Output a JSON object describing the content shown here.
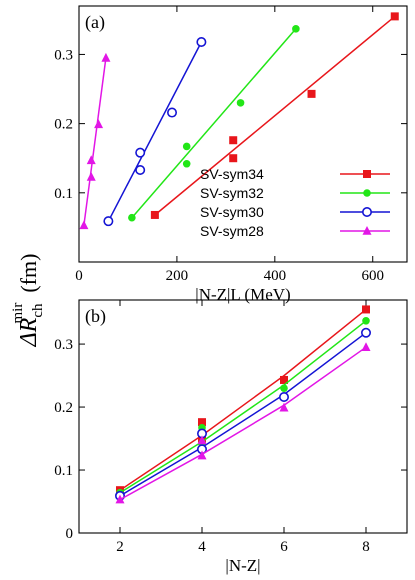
{
  "y_label_main": "ΔR",
  "y_label_sub": "ch",
  "y_label_sup": "mir",
  "y_label_unit": "(fm)",
  "chart_data": [
    {
      "panel": "(a)",
      "type": "scatter",
      "xlabel": "|N-Z|L (MeV)",
      "xlim": [
        0,
        670
      ],
      "ylim": [
        0,
        0.37
      ],
      "xticks": [
        0,
        200,
        400,
        600
      ],
      "yticks": [
        0.1,
        0.2,
        0.3
      ],
      "legend_position": "bottom-right",
      "series": [
        {
          "name": "SV-sym34",
          "color": "#e8161b",
          "marker": "filled-square",
          "points": [
            [
              155,
              0.068
            ],
            [
              315,
              0.15
            ],
            [
              315,
              0.176
            ],
            [
              475,
              0.243
            ],
            [
              645,
              0.355
            ]
          ],
          "fit": [
            [
              155,
              0.068
            ],
            [
              645,
              0.355
            ]
          ]
        },
        {
          "name": "SV-sym32",
          "color": "#22e617",
          "marker": "filled-circle",
          "points": [
            [
              108,
              0.064
            ],
            [
              220,
              0.142
            ],
            [
              220,
              0.167
            ],
            [
              330,
              0.23
            ],
            [
              443,
              0.337
            ]
          ],
          "fit": [
            [
              108,
              0.064
            ],
            [
              443,
              0.337
            ]
          ]
        },
        {
          "name": "SV-sym30",
          "color": "#1414d4",
          "marker": "open-circle",
          "points": [
            [
              60,
              0.059
            ],
            [
              125,
              0.133
            ],
            [
              125,
              0.158
            ],
            [
              190,
              0.216
            ],
            [
              250,
              0.318
            ]
          ],
          "fit": [
            [
              60,
              0.059
            ],
            [
              250,
              0.318
            ]
          ]
        },
        {
          "name": "SV-sym28",
          "color": "#e216e6",
          "marker": "filled-triangle",
          "points": [
            [
              10,
              0.053
            ],
            [
              25,
              0.123
            ],
            [
              25,
              0.147
            ],
            [
              40,
              0.199
            ],
            [
              55,
              0.295
            ]
          ],
          "fit": [
            [
              10,
              0.053
            ],
            [
              55,
              0.295
            ]
          ]
        }
      ]
    },
    {
      "panel": "(b)",
      "type": "line",
      "xlabel": "|N-Z|",
      "xlim": [
        1,
        9
      ],
      "ylim": [
        0,
        0.37
      ],
      "xticks": [
        2,
        4,
        6,
        8
      ],
      "yticks": [
        0,
        0.1,
        0.2,
        0.3
      ],
      "series": [
        {
          "name": "SV-sym34",
          "color": "#e8161b",
          "marker": "filled-square",
          "points": [
            [
              2,
              0.068
            ],
            [
              4,
              0.15
            ],
            [
              4,
              0.176
            ],
            [
              6,
              0.243
            ],
            [
              8,
              0.355
            ]
          ],
          "fit": [
            [
              2,
              0.068
            ],
            [
              4,
              0.155
            ],
            [
              6,
              0.25
            ],
            [
              8,
              0.355
            ]
          ]
        },
        {
          "name": "SV-sym32",
          "color": "#22e617",
          "marker": "filled-circle",
          "points": [
            [
              2,
              0.064
            ],
            [
              4,
              0.142
            ],
            [
              4,
              0.167
            ],
            [
              6,
              0.23
            ],
            [
              8,
              0.337
            ]
          ],
          "fit": [
            [
              2,
              0.064
            ],
            [
              4,
              0.145
            ],
            [
              6,
              0.235
            ],
            [
              8,
              0.337
            ]
          ]
        },
        {
          "name": "SV-sym30",
          "color": "#1414d4",
          "marker": "open-circle",
          "points": [
            [
              2,
              0.059
            ],
            [
              4,
              0.133
            ],
            [
              4,
              0.158
            ],
            [
              6,
              0.216
            ],
            [
              8,
              0.318
            ]
          ],
          "fit": [
            [
              2,
              0.059
            ],
            [
              4,
              0.136
            ],
            [
              6,
              0.22
            ],
            [
              8,
              0.318
            ]
          ]
        },
        {
          "name": "SV-sym28",
          "color": "#e216e6",
          "marker": "filled-triangle",
          "points": [
            [
              2,
              0.053
            ],
            [
              4,
              0.123
            ],
            [
              4,
              0.147
            ],
            [
              6,
              0.199
            ],
            [
              8,
              0.295
            ]
          ],
          "fit": [
            [
              2,
              0.053
            ],
            [
              4,
              0.125
            ],
            [
              6,
              0.203
            ],
            [
              8,
              0.295
            ]
          ]
        }
      ]
    }
  ]
}
